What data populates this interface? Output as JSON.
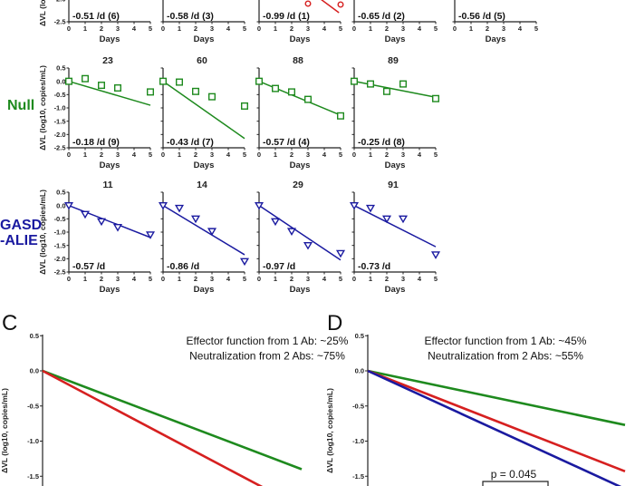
{
  "colors": {
    "red": "#d62020",
    "green": "#1e8a1e",
    "blue": "#1a1aa0",
    "axis": "#222222"
  },
  "chart_data": [
    {
      "id": "small-multiples",
      "type": "scatter",
      "xlabel": "Days",
      "ylabel": "ΔVL (log10, copies/mL)",
      "x_ticks": [
        "0",
        "1",
        "2",
        "3",
        "4",
        "5"
      ],
      "y_ticks": [
        "0.5",
        "0.0",
        "-0.5",
        "-1.0",
        "-1.5",
        "-2.0",
        "-2.5"
      ],
      "xlim": [
        0,
        5
      ],
      "ylim": [
        -2.5,
        0.5
      ],
      "groups": [
        {
          "name": "top-row",
          "label": "",
          "color_key": "red",
          "marker": "circle",
          "partial": true,
          "panels": [
            {
              "title": "",
              "slope_label": "-0.51 /d (6)",
              "slope": -0.51,
              "points": []
            },
            {
              "title": "",
              "slope_label": "-0.58 /d (3)",
              "slope": -0.58,
              "points": []
            },
            {
              "title": "",
              "slope_label": "-0.99 /d (1)",
              "slope": -0.99,
              "points": [
                [
                  3,
                  -2.1
                ],
                [
                  5,
                  -2.12
                ]
              ]
            },
            {
              "title": "",
              "slope_label": "-0.65 /d (2)",
              "slope": -0.65,
              "points": []
            },
            {
              "title": "",
              "slope_label": "-0.56 /d (5)",
              "slope": -0.56,
              "points": []
            }
          ]
        },
        {
          "name": "null",
          "label": "Null",
          "color_key": "green",
          "marker": "square",
          "panels": [
            {
              "title": "23",
              "slope_label": "-0.18 /d (9)",
              "slope": -0.18,
              "intercept": 0.0,
              "points": [
                [
                  0,
                  0.0
                ],
                [
                  1,
                  0.1
                ],
                [
                  2,
                  -0.15
                ],
                [
                  3,
                  -0.25
                ],
                [
                  5,
                  -0.4
                ]
              ]
            },
            {
              "title": "60",
              "slope_label": "-0.43 /d (7)",
              "slope": -0.43,
              "intercept": 0.0,
              "points": [
                [
                  0,
                  0.0
                ],
                [
                  1,
                  -0.03
                ],
                [
                  2,
                  -0.38
                ],
                [
                  3,
                  -0.58
                ],
                [
                  5,
                  -0.93
                ]
              ]
            },
            {
              "title": "88",
              "slope_label": "-0.57 /d (4)",
              "slope": -0.255,
              "intercept": 0.0,
              "points": [
                [
                  0,
                  0.0
                ],
                [
                  1,
                  -0.27
                ],
                [
                  2,
                  -0.4
                ],
                [
                  3,
                  -0.68
                ],
                [
                  5,
                  -1.3
                ]
              ]
            },
            {
              "title": "89",
              "slope_label": "-0.25 /d (8)",
              "slope": -0.12,
              "intercept": 0.0,
              "points": [
                [
                  0,
                  0.0
                ],
                [
                  1,
                  -0.1
                ],
                [
                  2,
                  -0.38
                ],
                [
                  3,
                  -0.1
                ],
                [
                  5,
                  -0.65
                ]
              ]
            }
          ]
        },
        {
          "name": "gasd-alie",
          "label_lines": [
            "GASD",
            "-ALIE"
          ],
          "color_key": "blue",
          "marker": "triangle-down",
          "panels": [
            {
              "title": "11",
              "slope_label": "-0.57 /d",
              "slope": -0.24,
              "intercept": 0.0,
              "points": [
                [
                  0,
                  0.0
                ],
                [
                  1,
                  -0.33
                ],
                [
                  2,
                  -0.6
                ],
                [
                  3,
                  -0.82
                ],
                [
                  5,
                  -1.1
                ]
              ]
            },
            {
              "title": "14",
              "slope_label": "-0.86 /d",
              "slope": -0.37,
              "intercept": 0.0,
              "points": [
                [
                  0,
                  0.0
                ],
                [
                  1,
                  -0.1
                ],
                [
                  2,
                  -0.5
                ],
                [
                  3,
                  -0.97
                ],
                [
                  5,
                  -2.1
                ]
              ]
            },
            {
              "title": "29",
              "slope_label": "-0.97 /d",
              "slope": -0.41,
              "intercept": 0.0,
              "points": [
                [
                  0,
                  0.0
                ],
                [
                  1,
                  -0.6
                ],
                [
                  2,
                  -0.97
                ],
                [
                  3,
                  -1.5
                ],
                [
                  5,
                  -1.8
                ]
              ]
            },
            {
              "title": "91",
              "slope_label": "-0.73 /d",
              "slope": -0.31,
              "intercept": 0.0,
              "points": [
                [
                  0,
                  0.0
                ],
                [
                  1,
                  -0.1
                ],
                [
                  2,
                  -0.5
                ],
                [
                  3,
                  -0.5
                ],
                [
                  5,
                  -1.85
                ]
              ]
            }
          ]
        }
      ]
    },
    {
      "id": "panel-c",
      "type": "line",
      "panel_letter": "C",
      "annotation_lines": [
        "Effector function from 1 Ab: ~25%",
        "Neutralization from 2 Abs: ~75%"
      ],
      "ylabel": "ΔVL (log10, copies/mL)",
      "y_ticks": [
        "0.5",
        "0.0",
        "-0.5",
        "-1.0",
        "-1.5"
      ],
      "ylim_visible": [
        -1.7,
        0.5
      ],
      "xlim": [
        0,
        1
      ],
      "series": [
        {
          "name": "green",
          "color_key": "green",
          "x": [
            0,
            1
          ],
          "y": [
            0.0,
            -1.4
          ]
        },
        {
          "name": "red",
          "color_key": "red",
          "x": [
            0,
            1
          ],
          "y": [
            0.0,
            -1.95
          ]
        }
      ]
    },
    {
      "id": "panel-d",
      "type": "line",
      "panel_letter": "D",
      "annotation_lines": [
        "Effector function from 1 Ab: ~45%",
        "Neutralization from 2 Abs: ~55%"
      ],
      "ylabel": "ΔVL (log10, copies/mL)",
      "y_ticks": [
        "0.5",
        "0.0",
        "-0.5",
        "-1.0",
        "-1.5"
      ],
      "ylim_visible": [
        -1.7,
        0.5
      ],
      "xlim": [
        0,
        1
      ],
      "series": [
        {
          "name": "green",
          "color_key": "green",
          "x": [
            0,
            1
          ],
          "y": [
            0.0,
            -0.77
          ]
        },
        {
          "name": "red",
          "color_key": "red",
          "x": [
            0,
            1
          ],
          "y": [
            0.0,
            -1.43
          ]
        },
        {
          "name": "blue",
          "color_key": "blue",
          "x": [
            0,
            1
          ],
          "y": [
            0.0,
            -1.68
          ]
        }
      ],
      "significance": {
        "label": "p = 0.045"
      }
    }
  ]
}
